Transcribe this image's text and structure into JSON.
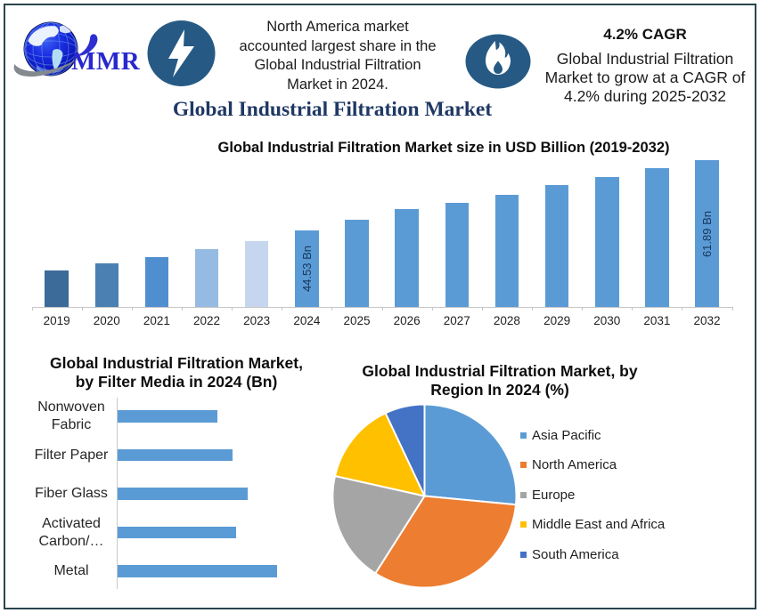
{
  "page": {
    "background": "#ffffff",
    "border_color": "#2a454e"
  },
  "header": {
    "logo_text": "MMR",
    "logo_color": "#2d2dd0",
    "badge_color": "#265a84",
    "left_note_lines": [
      "North America market",
      "accounted largest share in the",
      "Global Industrial Filtration",
      "Market in 2024."
    ],
    "cagr_title": "4.2% CAGR",
    "cagr_note_lines": [
      "Global Industrial Filtration",
      "Market to grow at a CAGR of",
      "4.2% during 2025-2032"
    ],
    "main_title": "Global Industrial Filtration Market"
  },
  "chart_data": [
    {
      "type": "bar",
      "title": "Global Industrial Filtration Market size in USD Billion (2019-2032)",
      "categories": [
        "2019",
        "2020",
        "2021",
        "2022",
        "2023",
        "2024",
        "2025",
        "2026",
        "2027",
        "2028",
        "2029",
        "2030",
        "2031",
        "2032"
      ],
      "values": [
        34.78,
        36.42,
        37.96,
        39.93,
        41.9,
        44.53,
        47.27,
        49.9,
        51.33,
        53.3,
        55.71,
        57.79,
        59.88,
        61.89
      ],
      "unit": "USD Billion",
      "ylim": [
        25.79,
        65.0
      ],
      "grid": false,
      "data_labels": {
        "5": "44.53 Bn",
        "13": "61.89 Bn"
      },
      "bar_colors": [
        "#3c6b99",
        "#4a81b2",
        "#4f8fd0",
        "#96bbe2",
        "#c6d6ee",
        "#5b9bd5",
        "#5b9bd5",
        "#5b9bd5",
        "#5b9bd5",
        "#5b9bd5",
        "#5b9bd5",
        "#5b9bd5",
        "#5b9bd5",
        "#5b9bd5"
      ],
      "label_color": "#17365d"
    },
    {
      "type": "bar",
      "orientation": "horizontal",
      "title_lines": [
        "Global Industrial Filtration Market,",
        "by Filter Media in 2024 (Bn)"
      ],
      "categories": [
        "Nonwoven\nFabric",
        "Filter Paper",
        "Fiber Glass",
        "Activated\nCarbon/…",
        "Metal"
      ],
      "values": [
        8.0,
        9.2,
        10.4,
        9.5,
        12.8
      ],
      "unit": "Bn",
      "bar_color": "#5b9bd5",
      "grid": false
    },
    {
      "type": "pie",
      "title_lines": [
        "Global Industrial Filtration Market, by",
        "Region In 2024 (%)"
      ],
      "labels": [
        "Asia Pacific",
        "North America",
        "Europe",
        "Middle East and Africa",
        "South America"
      ],
      "values": [
        26.5,
        32.5,
        19.5,
        14.5,
        7.0
      ],
      "unit": "%",
      "colors": [
        "#5b9bd5",
        "#ed7d31",
        "#a5a5a5",
        "#ffc000",
        "#4472c4"
      ],
      "start_angle_deg": 0,
      "direction": "clockwise",
      "legend_position": "right"
    }
  ]
}
